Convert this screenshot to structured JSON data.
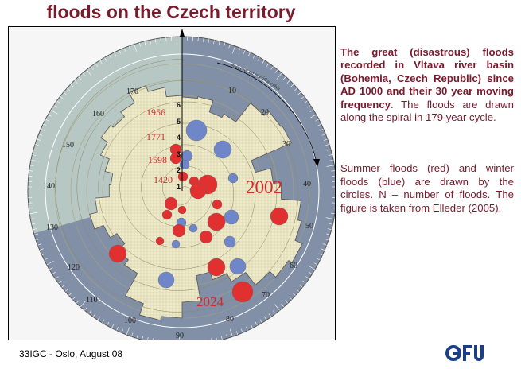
{
  "title": "floods on the Czech territory",
  "description": {
    "intro_bold": "The great (disastrous) floods recorded in Vltava river basin (Bohemia, Czech Republic) since AD 1000 and their 30 year moving frequency",
    "intro_end": ".",
    "intro_rest": "The floods are drawn along the spiral in 179 year cycle.",
    "legend": "Summer floods (red) and winter floods (blue) are drawn by the circles. N – number of floods. The figure is taken from Elleder (2005)."
  },
  "footer": "33IGC - Oslo, August 08",
  "logo": "GFU",
  "figure": {
    "dial_numbers": [
      "10",
      "20",
      "30",
      "40",
      "50",
      "60",
      "70",
      "80",
      "90",
      "100",
      "110",
      "120",
      "130",
      "140",
      "150",
      "160",
      "170"
    ],
    "arc_caption": "Počet let od počátku cyklu",
    "n_labels": [
      "1",
      "2",
      "3",
      "4",
      "5",
      "6"
    ],
    "year_labels": [
      "1956",
      "1771",
      "1598",
      "1420",
      "2002",
      "2024"
    ],
    "colors": {
      "summer": "#e03030",
      "winter": "#6f86c8",
      "sector_dark": "#8190a6",
      "sector_light": "#b6c7c4",
      "histogram": "#efeccc",
      "year_red": "#d02a2a"
    }
  }
}
